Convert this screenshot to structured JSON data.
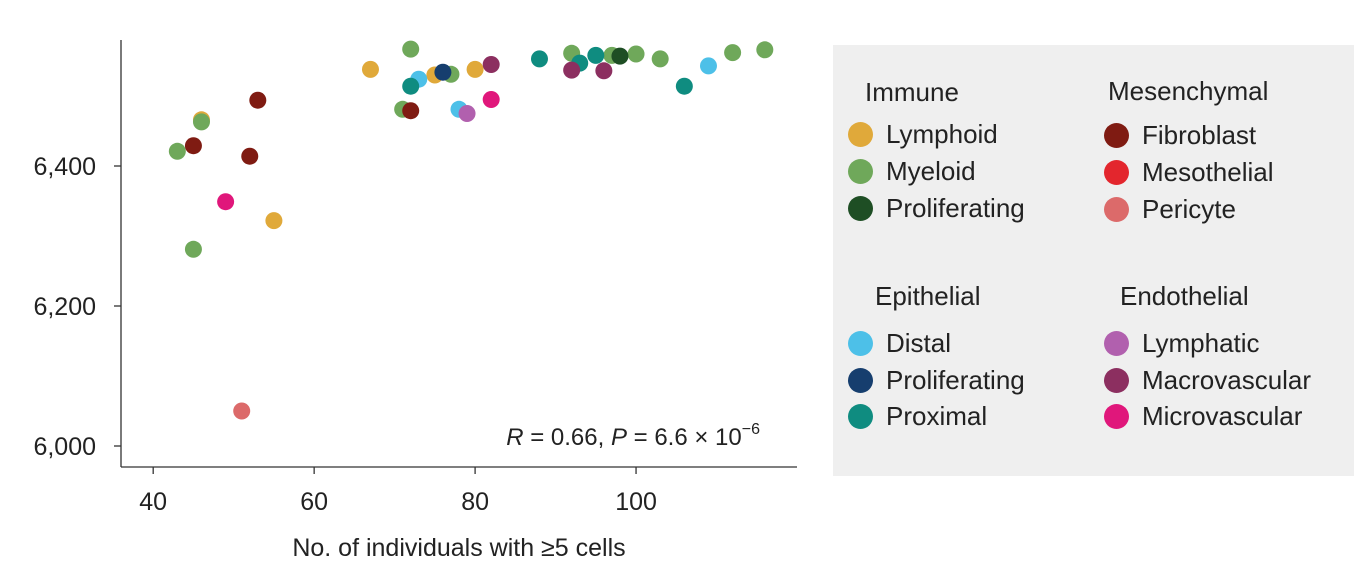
{
  "chart_data": {
    "type": "scatter",
    "xlabel": "No. of individuals with ≥5 cells",
    "ylabel": "",
    "xlim": [
      36,
      120
    ],
    "ylim": [
      5970,
      6580
    ],
    "xticks": [
      40,
      60,
      80,
      100
    ],
    "xtick_labels": [
      "40",
      "60",
      "80",
      "100"
    ],
    "yticks": [
      6000,
      6200,
      6400
    ],
    "ytick_labels": [
      "6,000",
      "6,200",
      "6,400"
    ],
    "annotation": {
      "r_sym": "R",
      "r_text": " = 0.66, ",
      "p_sym": "P",
      "p_text": " = 6.6 × 10",
      "p_exp": "−6"
    },
    "grid": false,
    "legend_position": "right",
    "colors": {
      "Lymphoid": "#E0A93A",
      "Myeloid": "#6FA85A",
      "Immune Proliferating": "#1E4E24",
      "Fibroblast": "#7F1B12",
      "Mesothelial": "#E3262D",
      "Pericyte": "#DC6A6A",
      "Distal": "#4DC0E8",
      "Epithelial Proliferating": "#163E6E",
      "Proximal": "#0F8C80",
      "Lymphatic": "#B160AE",
      "Macrovascular": "#8C2F60",
      "Microvascular": "#E0177B"
    },
    "series": [
      {
        "name": "Lymphoid",
        "points": [
          [
            46,
            6466
          ],
          [
            55,
            6322
          ],
          [
            67,
            6538
          ],
          [
            75,
            6530
          ],
          [
            80,
            6538
          ]
        ]
      },
      {
        "name": "Myeloid",
        "points": [
          [
            43,
            6421
          ],
          [
            45,
            6281
          ],
          [
            46,
            6463
          ],
          [
            71,
            6481
          ],
          [
            72,
            6567
          ],
          [
            77,
            6531
          ],
          [
            92,
            6561
          ],
          [
            97,
            6558
          ],
          [
            100,
            6560
          ],
          [
            103,
            6553
          ],
          [
            112,
            6562
          ],
          [
            116,
            6566
          ]
        ]
      },
      {
        "name": "Immune Proliferating",
        "points": [
          [
            98,
            6557
          ]
        ]
      },
      {
        "name": "Fibroblast",
        "points": [
          [
            45,
            6429
          ],
          [
            52,
            6414
          ],
          [
            53,
            6494
          ],
          [
            72,
            6479
          ]
        ]
      },
      {
        "name": "Mesothelial",
        "points": []
      },
      {
        "name": "Pericyte",
        "points": [
          [
            51,
            6050
          ]
        ]
      },
      {
        "name": "Distal",
        "points": [
          [
            73,
            6524
          ],
          [
            78,
            6481
          ],
          [
            109,
            6543
          ]
        ]
      },
      {
        "name": "Epithelial Proliferating",
        "points": [
          [
            76,
            6534
          ]
        ]
      },
      {
        "name": "Proximal",
        "points": [
          [
            72,
            6514
          ],
          [
            88,
            6553
          ],
          [
            93,
            6547
          ],
          [
            95,
            6558
          ],
          [
            106,
            6514
          ]
        ]
      },
      {
        "name": "Lymphatic",
        "points": [
          [
            79,
            6475
          ]
        ]
      },
      {
        "name": "Macrovascular",
        "points": [
          [
            82,
            6545
          ],
          [
            92,
            6537
          ],
          [
            96,
            6536
          ]
        ]
      },
      {
        "name": "Microvascular",
        "points": [
          [
            49,
            6349
          ],
          [
            82,
            6495
          ]
        ]
      }
    ]
  },
  "legend": {
    "groups": [
      {
        "title": "Immune",
        "items": [
          {
            "label": "Lymphoid",
            "color": "#E0A93A"
          },
          {
            "label": "Myeloid",
            "color": "#6FA85A"
          },
          {
            "label": "Proliferating",
            "color": "#1E4E24"
          }
        ]
      },
      {
        "title": "Mesenchymal",
        "items": [
          {
            "label": "Fibroblast",
            "color": "#7F1B12"
          },
          {
            "label": "Mesothelial",
            "color": "#E3262D"
          },
          {
            "label": "Pericyte",
            "color": "#DC6A6A"
          }
        ]
      },
      {
        "title": "Epithelial",
        "items": [
          {
            "label": "Distal",
            "color": "#4DC0E8"
          },
          {
            "label": "Proliferating",
            "color": "#163E6E"
          },
          {
            "label": "Proximal",
            "color": "#0F8C80"
          }
        ]
      },
      {
        "title": "Endothelial",
        "items": [
          {
            "label": "Lymphatic",
            "color": "#B160AE"
          },
          {
            "label": "Macrovascular",
            "color": "#8C2F60"
          },
          {
            "label": "Microvascular",
            "color": "#E0177B"
          }
        ]
      }
    ]
  }
}
